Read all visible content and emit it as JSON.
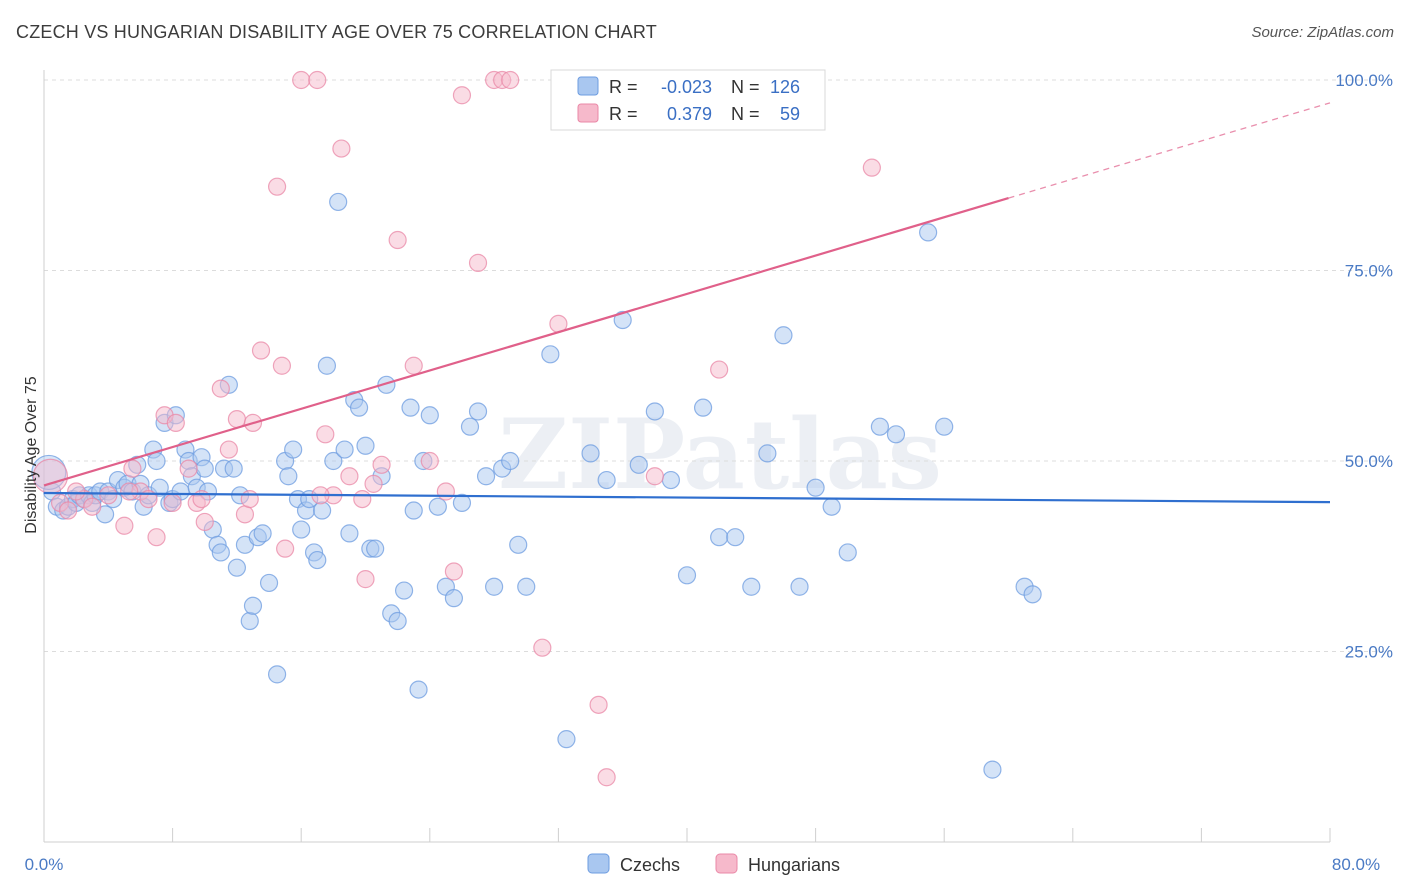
{
  "header": {
    "title": "CZECH VS HUNGARIAN DISABILITY AGE OVER 75 CORRELATION CHART",
    "source": "Source: ZipAtlas.com"
  },
  "watermark": "ZIPatlas",
  "legend": {
    "rows": [
      {
        "r_label": "R =",
        "r_value": "-0.023",
        "n_label": "N =",
        "n_value": "126",
        "color": "#a9c7f0",
        "edge": "#6d9ce0"
      },
      {
        "r_label": "R =",
        "r_value": "0.379",
        "n_label": "N =",
        "n_value": "59",
        "color": "#f6b9cb",
        "edge": "#ea88a7"
      }
    ]
  },
  "bottom_legend": [
    {
      "label": "Czechs",
      "color": "#a9c7f0",
      "edge": "#6d9ce0"
    },
    {
      "label": "Hungarians",
      "color": "#f6b9cb",
      "edge": "#ea88a7"
    }
  ],
  "chart_data": {
    "type": "scatter",
    "title": "CZECH VS HUNGARIAN DISABILITY AGE OVER 75 CORRELATION CHART",
    "xlabel": "",
    "ylabel": "Disability Age Over 75",
    "xlim": [
      0,
      80
    ],
    "ylim": [
      0,
      105
    ],
    "x_tick_labels": [
      "0.0%",
      "80.0%"
    ],
    "y_tick_labels": [
      "25.0%",
      "50.0%",
      "75.0%",
      "100.0%"
    ],
    "y_ticks": [
      25,
      50,
      75,
      100
    ],
    "grid": "horizontal dashed",
    "legend_position": "top-center",
    "series": [
      {
        "name": "Czechs",
        "color": "#6d9ce0",
        "fill": "#a9c7f0",
        "trend": {
          "x0": 0,
          "y0": 45.8,
          "x1": 80,
          "y1": 44.6,
          "color": "#2f6fcf"
        },
        "points": [
          [
            0.5,
            46
          ],
          [
            0.8,
            44
          ],
          [
            1.2,
            43.5
          ],
          [
            1.5,
            44
          ],
          [
            1.8,
            45
          ],
          [
            2,
            44.5
          ],
          [
            2.2,
            45.5
          ],
          [
            2.5,
            45
          ],
          [
            2.8,
            45.5
          ],
          [
            3,
            44.5
          ],
          [
            3.2,
            45.5
          ],
          [
            3.5,
            46
          ],
          [
            3.8,
            43
          ],
          [
            4,
            46
          ],
          [
            4.3,
            45
          ],
          [
            4.6,
            47.5
          ],
          [
            5,
            46.5
          ],
          [
            5.2,
            47
          ],
          [
            5.5,
            46
          ],
          [
            5.8,
            49.5
          ],
          [
            6,
            47
          ],
          [
            6.2,
            44
          ],
          [
            6.5,
            45.5
          ],
          [
            6.8,
            51.5
          ],
          [
            7,
            50
          ],
          [
            7.2,
            46.5
          ],
          [
            7.5,
            55
          ],
          [
            7.8,
            44.5
          ],
          [
            8,
            45
          ],
          [
            8.2,
            56
          ],
          [
            8.5,
            46
          ],
          [
            8.8,
            51.5
          ],
          [
            9,
            50
          ],
          [
            9.2,
            48
          ],
          [
            9.5,
            46.5
          ],
          [
            9.8,
            50.5
          ],
          [
            10,
            49
          ],
          [
            10.2,
            46
          ],
          [
            10.5,
            41
          ],
          [
            10.8,
            39
          ],
          [
            11,
            38
          ],
          [
            11.2,
            49
          ],
          [
            11.5,
            60
          ],
          [
            11.8,
            49
          ],
          [
            12,
            36
          ],
          [
            12.2,
            45.5
          ],
          [
            12.5,
            39
          ],
          [
            12.8,
            29
          ],
          [
            13,
            31
          ],
          [
            13.3,
            40
          ],
          [
            13.6,
            40.5
          ],
          [
            14,
            34
          ],
          [
            14.5,
            22
          ],
          [
            15,
            50
          ],
          [
            15.2,
            48
          ],
          [
            15.5,
            51.5
          ],
          [
            15.8,
            45
          ],
          [
            16,
            41
          ],
          [
            16.3,
            43.5
          ],
          [
            16.5,
            45
          ],
          [
            16.8,
            38
          ],
          [
            17,
            37
          ],
          [
            17.3,
            43.5
          ],
          [
            17.6,
            62.5
          ],
          [
            18,
            50
          ],
          [
            18.3,
            84
          ],
          [
            18.7,
            51.5
          ],
          [
            19,
            40.5
          ],
          [
            19.3,
            58
          ],
          [
            19.6,
            57
          ],
          [
            20,
            52
          ],
          [
            20.3,
            38.5
          ],
          [
            20.6,
            38.5
          ],
          [
            21,
            48
          ],
          [
            21.3,
            60
          ],
          [
            21.6,
            30
          ],
          [
            22,
            29
          ],
          [
            22.4,
            33
          ],
          [
            22.8,
            57
          ],
          [
            23,
            43.5
          ],
          [
            23.3,
            20
          ],
          [
            23.6,
            50
          ],
          [
            24,
            56
          ],
          [
            24.5,
            44
          ],
          [
            25,
            33.5
          ],
          [
            25.5,
            32
          ],
          [
            26,
            44.5
          ],
          [
            26.5,
            54.5
          ],
          [
            27,
            56.5
          ],
          [
            27.5,
            48
          ],
          [
            28,
            33.5
          ],
          [
            28.5,
            49
          ],
          [
            29,
            50
          ],
          [
            29.5,
            39
          ],
          [
            30,
            33.5
          ],
          [
            31.5,
            64
          ],
          [
            32.5,
            13.5
          ],
          [
            34,
            51
          ],
          [
            35,
            47.5
          ],
          [
            36,
            68.5
          ],
          [
            37,
            49.5
          ],
          [
            38,
            56.5
          ],
          [
            39,
            47.5
          ],
          [
            40,
            35
          ],
          [
            41,
            57
          ],
          [
            42,
            40
          ],
          [
            43,
            40
          ],
          [
            44,
            33.5
          ],
          [
            45,
            51
          ],
          [
            46,
            66.5
          ],
          [
            47,
            33.5
          ],
          [
            48,
            46.5
          ],
          [
            49,
            44
          ],
          [
            50,
            38
          ],
          [
            52,
            54.5
          ],
          [
            53,
            53.5
          ],
          [
            55,
            80
          ],
          [
            56,
            54.5
          ],
          [
            59,
            9.5
          ],
          [
            61,
            33.5
          ],
          [
            61.5,
            32.5
          ],
          [
            0.3,
            48.5
          ]
        ]
      },
      {
        "name": "Hungarians",
        "color": "#ea88a7",
        "fill": "#f6b9cb",
        "trend": {
          "x0": 0,
          "y0": 46.8,
          "x1": 60,
          "y1": 84.5,
          "dash_to_x": 80,
          "dash_to_y": 97,
          "color": "#e0608a"
        },
        "points": [
          [
            0.4,
            48
          ],
          [
            1,
            44.5
          ],
          [
            2.5,
            45
          ],
          [
            3,
            44
          ],
          [
            4,
            45.5
          ],
          [
            5,
            41.5
          ],
          [
            5.5,
            49
          ],
          [
            6,
            46
          ],
          [
            7,
            40
          ],
          [
            7.5,
            56
          ],
          [
            8,
            44.5
          ],
          [
            8.2,
            55
          ],
          [
            9,
            49
          ],
          [
            9.5,
            44.5
          ],
          [
            10,
            42
          ],
          [
            11,
            59.5
          ],
          [
            11.5,
            51.5
          ],
          [
            12,
            55.5
          ],
          [
            12.5,
            43
          ],
          [
            12.8,
            45
          ],
          [
            13,
            55
          ],
          [
            13.5,
            64.5
          ],
          [
            14.5,
            86
          ],
          [
            14.8,
            62.5
          ],
          [
            15,
            38.5
          ],
          [
            16,
            100
          ],
          [
            17,
            100
          ],
          [
            17.5,
            53.5
          ],
          [
            18,
            45.5
          ],
          [
            18.5,
            91
          ],
          [
            19,
            48
          ],
          [
            20,
            34.5
          ],
          [
            20.5,
            47
          ],
          [
            21,
            49.5
          ],
          [
            22,
            79
          ],
          [
            23,
            62.5
          ],
          [
            24,
            50
          ],
          [
            25,
            46
          ],
          [
            25.5,
            35.5
          ],
          [
            26,
            98
          ],
          [
            27,
            76
          ],
          [
            28,
            100
          ],
          [
            28.5,
            100
          ],
          [
            29,
            100
          ],
          [
            31,
            25.5
          ],
          [
            32,
            68
          ],
          [
            34.5,
            18
          ],
          [
            35,
            8.5
          ],
          [
            38,
            48
          ],
          [
            42,
            62
          ],
          [
            48,
            100
          ],
          [
            51.5,
            88.5
          ],
          [
            1.5,
            43.5
          ],
          [
            2,
            46
          ],
          [
            6.5,
            45
          ],
          [
            9.8,
            45
          ],
          [
            17.2,
            45.5
          ],
          [
            19.8,
            45
          ],
          [
            5.3,
            46
          ]
        ]
      }
    ]
  }
}
